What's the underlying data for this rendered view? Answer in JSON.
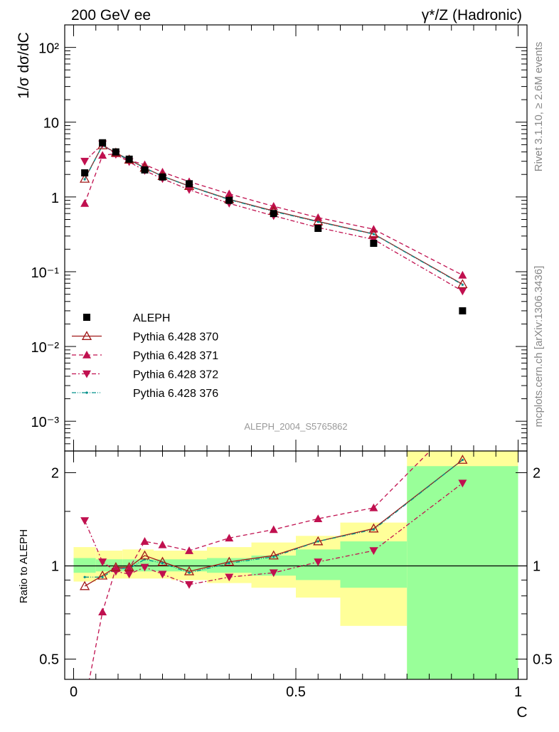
{
  "header": {
    "left_title": "200 GeV ee",
    "right_title": "γ*/Z (Hadronic)"
  },
  "side_labels": {
    "rivet": "Rivet 3.1.10, ≥ 2.6M events",
    "mcplots": "mcplots.cern.ch [arXiv:1306.3436]"
  },
  "watermark": "ALEPH_2004_S5765862",
  "colors": {
    "data": "#000000",
    "mc370": "#a01818",
    "mc371": "#c0104f",
    "mc372": "#c0104f",
    "mc376": "#00908a",
    "band_inner": "#99ff99",
    "band_outer": "#ffff99"
  },
  "chart_data": [
    {
      "type": "line",
      "panel": "main",
      "ylabel": "1/σ  dσ/dC",
      "yscale": "log",
      "ylim": [
        0.0004,
        200
      ],
      "xlim": [
        -0.02,
        1.02
      ],
      "yticks": [
        "10⁻³",
        "10⁻²",
        "10⁻¹",
        "1",
        "10",
        "10²"
      ],
      "legend_position": "lower-left",
      "x": [
        0.025,
        0.065,
        0.095,
        0.125,
        0.16,
        0.2,
        0.26,
        0.35,
        0.45,
        0.55,
        0.675,
        0.875
      ],
      "series": [
        {
          "name": "ALEPH",
          "marker": "square",
          "values": [
            2.1,
            5.3,
            4.0,
            3.2,
            2.3,
            1.85,
            1.5,
            0.9,
            0.6,
            0.38,
            0.24,
            0.03
          ]
        },
        {
          "name": "Pythia 6.428 370",
          "marker": "open-triangle-up",
          "style": "solid",
          "values": [
            1.75,
            4.9,
            3.9,
            3.15,
            2.45,
            1.9,
            1.4,
            0.93,
            0.65,
            0.47,
            0.32,
            0.068
          ]
        },
        {
          "name": "Pythia 6.428 371",
          "marker": "triangle-up",
          "style": "dashed",
          "values": [
            0.82,
            3.6,
            3.8,
            3.1,
            2.7,
            2.15,
            1.6,
            1.1,
            0.75,
            0.53,
            0.37,
            0.09
          ]
        },
        {
          "name": "Pythia 6.428 372",
          "marker": "triangle-down",
          "style": "dashdot",
          "values": [
            3.0,
            5.1,
            3.7,
            2.95,
            2.25,
            1.75,
            1.25,
            0.82,
            0.56,
            0.39,
            0.27,
            0.055
          ]
        },
        {
          "name": "Pythia 6.428 376",
          "marker": "dot",
          "style": "dashdotdot",
          "values": [
            1.72,
            4.88,
            3.88,
            3.13,
            2.43,
            1.89,
            1.39,
            0.92,
            0.64,
            0.465,
            0.318,
            0.067
          ]
        }
      ]
    },
    {
      "type": "line",
      "panel": "ratio",
      "ylabel": "Ratio to ALEPH",
      "xlabel": "C",
      "yscale": "log",
      "ylim": [
        0.43,
        2.35
      ],
      "xlim": [
        -0.02,
        1.02
      ],
      "yticks": [
        "0.5",
        "1",
        "2"
      ],
      "xticks": [
        "0",
        "0.5",
        "1"
      ],
      "reference_line": 1,
      "bands": {
        "edges": [
          0.0,
          0.05,
          0.08,
          0.11,
          0.14,
          0.18,
          0.22,
          0.3,
          0.4,
          0.5,
          0.6,
          0.75,
          1.0
        ],
        "inner_lo": [
          0.95,
          0.96,
          0.96,
          0.96,
          0.96,
          0.96,
          0.96,
          0.95,
          0.93,
          0.9,
          0.85,
          0.3
        ],
        "inner_hi": [
          1.06,
          1.05,
          1.05,
          1.05,
          1.05,
          1.05,
          1.05,
          1.06,
          1.08,
          1.13,
          1.2,
          2.1
        ],
        "outer_lo": [
          0.89,
          0.91,
          0.91,
          0.91,
          0.91,
          0.91,
          0.9,
          0.88,
          0.85,
          0.79,
          0.64,
          0.3
        ],
        "outer_hi": [
          1.15,
          1.12,
          1.12,
          1.13,
          1.13,
          1.12,
          1.12,
          1.15,
          1.19,
          1.25,
          1.38,
          2.4
        ]
      },
      "x": [
        0.025,
        0.065,
        0.095,
        0.125,
        0.16,
        0.2,
        0.26,
        0.35,
        0.45,
        0.55,
        0.675,
        0.875
      ],
      "series": [
        {
          "name": "Pythia 6.428 370",
          "marker": "open-triangle-up",
          "style": "solid",
          "values": [
            0.86,
            0.93,
            0.99,
            0.99,
            1.08,
            1.03,
            0.96,
            1.03,
            1.08,
            1.2,
            1.32,
            2.2
          ]
        },
        {
          "name": "Pythia 6.428 371",
          "marker": "triangle-up",
          "style": "dashed",
          "values": [
            0.36,
            0.71,
            0.98,
            0.98,
            1.2,
            1.17,
            1.12,
            1.23,
            1.31,
            1.42,
            1.54,
            3.0
          ]
        },
        {
          "name": "Pythia 6.428 372",
          "marker": "triangle-down",
          "style": "dashdot",
          "values": [
            1.4,
            1.03,
            0.96,
            0.94,
            0.99,
            0.94,
            0.87,
            0.92,
            0.95,
            1.03,
            1.12,
            1.85
          ]
        },
        {
          "name": "Pythia 6.428 376",
          "marker": "dot",
          "style": "dashdotdot",
          "values": [
            0.92,
            0.92,
            0.98,
            0.98,
            1.05,
            1.02,
            0.95,
            1.02,
            1.07,
            1.2,
            1.31,
            2.2
          ]
        }
      ]
    }
  ]
}
